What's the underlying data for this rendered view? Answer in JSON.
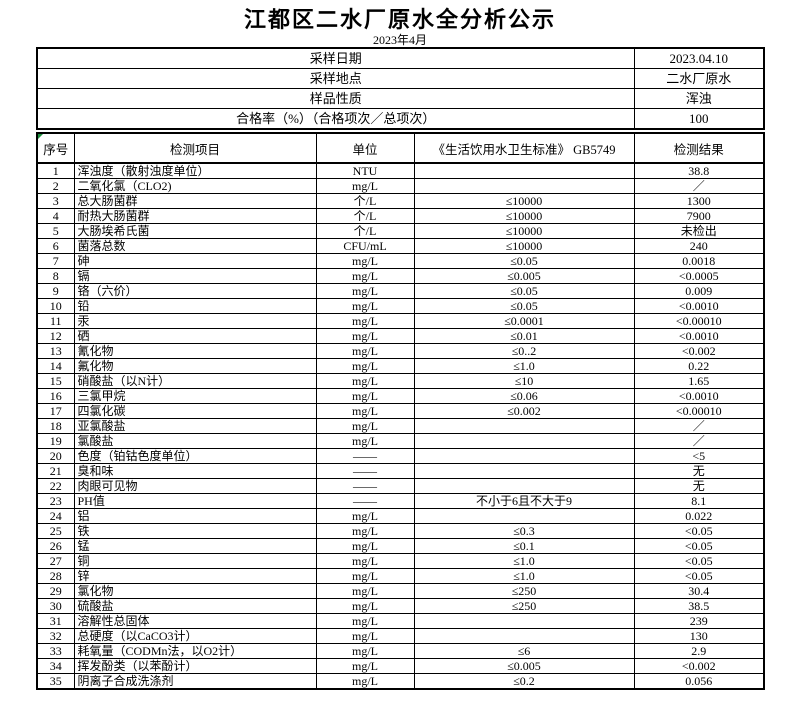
{
  "title": "江都区二水厂原水全分析公示",
  "subtitle": "2023年4月",
  "info": {
    "rows": [
      {
        "label": "采样日期",
        "value": "2023.04.10"
      },
      {
        "label": "采样地点",
        "value": "二水厂原水"
      },
      {
        "label": "样品性质",
        "value": "浑浊"
      },
      {
        "label": "合格率（%）（合格项次／总项次）",
        "value": "100"
      }
    ]
  },
  "table": {
    "headers": [
      "序号",
      "检测项目",
      "单位",
      "《生活饮用水卫生标准》 GB5749",
      "检测结果"
    ],
    "rows": [
      [
        "1",
        "浑浊度（散射浊度单位）",
        "NTU",
        "",
        "38.8"
      ],
      [
        "2",
        "二氧化氯（CLO2)",
        "mg/L",
        "",
        "／"
      ],
      [
        "3",
        "总大肠菌群",
        "个/L",
        "≤10000",
        "1300"
      ],
      [
        "4",
        "耐热大肠菌群",
        "个/L",
        "≤10000",
        "7900"
      ],
      [
        "5",
        "大肠埃希氏菌",
        "个/L",
        "≤10000",
        "未检出"
      ],
      [
        "6",
        "菌落总数",
        "CFU/mL",
        "≤10000",
        "240"
      ],
      [
        "7",
        "砷",
        "mg/L",
        "≤0.05",
        "0.0018"
      ],
      [
        "8",
        "镉",
        "mg/L",
        "≤0.005",
        "<0.0005"
      ],
      [
        "9",
        "铬（六价）",
        "mg/L",
        "≤0.05",
        "0.009"
      ],
      [
        "10",
        "铅",
        "mg/L",
        "≤0.05",
        "<0.0010"
      ],
      [
        "11",
        "汞",
        "mg/L",
        "≤0.0001",
        "<0.00010"
      ],
      [
        "12",
        "硒",
        "mg/L",
        "≤0.01",
        "<0.0010"
      ],
      [
        "13",
        "氰化物",
        "mg/L",
        "≤0..2",
        "<0.002"
      ],
      [
        "14",
        "氟化物",
        "mg/L",
        "≤1.0",
        "0.22"
      ],
      [
        "15",
        "硝酸盐（以N计）",
        "mg/L",
        "≤10",
        "1.65"
      ],
      [
        "16",
        "三氯甲烷",
        "mg/L",
        "≤0.06",
        "<0.0010"
      ],
      [
        "17",
        "四氯化碳",
        "mg/L",
        "≤0.002",
        "<0.00010"
      ],
      [
        "18",
        "亚氯酸盐",
        "mg/L",
        "",
        "／"
      ],
      [
        "19",
        "氯酸盐",
        "mg/L",
        "",
        "／"
      ],
      [
        "20",
        "色度（铂钴色度单位）",
        "——",
        "",
        "<5"
      ],
      [
        "21",
        "臭和味",
        "——",
        "",
        "无"
      ],
      [
        "22",
        "肉眼可见物",
        "——",
        "",
        "无"
      ],
      [
        "23",
        "PH值",
        "——",
        "不小于6且不大于9",
        "8.1"
      ],
      [
        "24",
        "铝",
        "mg/L",
        "",
        "0.022"
      ],
      [
        "25",
        "铁",
        "mg/L",
        "≤0.3",
        "<0.05"
      ],
      [
        "26",
        "锰",
        "mg/L",
        "≤0.1",
        "<0.05"
      ],
      [
        "27",
        "铜",
        "mg/L",
        "≤1.0",
        "<0.05"
      ],
      [
        "28",
        "锌",
        "mg/L",
        "≤1.0",
        "<0.05"
      ],
      [
        "29",
        "氯化物",
        "mg/L",
        "≤250",
        "30.4"
      ],
      [
        "30",
        "硫酸盐",
        "mg/L",
        "≤250",
        "38.5"
      ],
      [
        "31",
        "溶解性总固体",
        "mg/L",
        "",
        "239"
      ],
      [
        "32",
        "总硬度（以CaCO3计）",
        "mg/L",
        "",
        "130"
      ],
      [
        "33",
        "耗氧量（CODMn法，以O2计）",
        "mg/L",
        "≤6",
        "2.9"
      ],
      [
        "34",
        "挥发酚类（以苯酚计）",
        "mg/L",
        "≤0.005",
        "<0.002"
      ],
      [
        "35",
        "阴离子合成洗涤剂",
        "mg/L",
        "≤0.2",
        "0.056"
      ]
    ]
  },
  "colors": {
    "border": "#000000",
    "marker_green": "#1e8e3e",
    "background": "#ffffff"
  }
}
